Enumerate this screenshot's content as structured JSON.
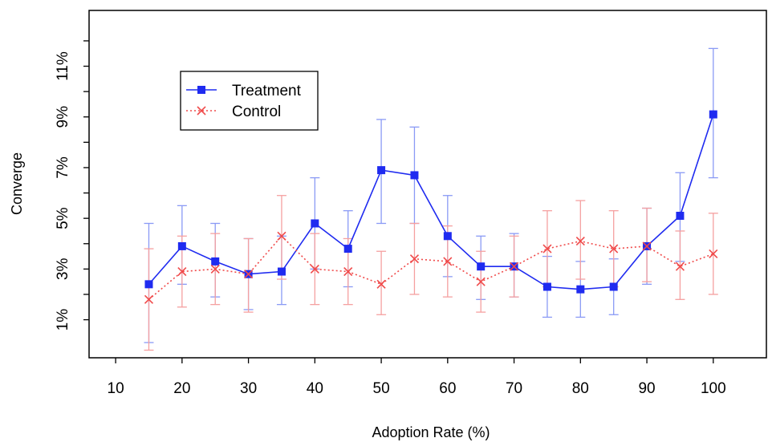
{
  "chart_data": {
    "type": "line",
    "xlabel": "Adoption Rate (%)",
    "ylabel": "Converge",
    "xlim": [
      6,
      108
    ],
    "ylim": [
      -0.5,
      13.2
    ],
    "x_ticks": [
      10,
      20,
      30,
      40,
      50,
      60,
      70,
      80,
      90,
      100
    ],
    "x_tick_labels": [
      "10",
      "20",
      "30",
      "40",
      "50",
      "60",
      "70",
      "80",
      "90",
      "100"
    ],
    "y_ticks": [
      1,
      3,
      5,
      7,
      9,
      11
    ],
    "y_tick_labels": [
      "1%",
      "3%",
      "5%",
      "7%",
      "9%",
      "11%"
    ],
    "y_minor_ticks": [
      2,
      4,
      6,
      8,
      10,
      12
    ],
    "legend": {
      "placement": "top-left",
      "entries": [
        "Treatment",
        "Control"
      ]
    },
    "x": [
      15,
      20,
      25,
      30,
      35,
      40,
      45,
      50,
      55,
      60,
      65,
      70,
      75,
      80,
      85,
      90,
      95,
      100
    ],
    "series": [
      {
        "name": "Treatment",
        "color": "#1f2bf0",
        "error_color": "#8a9af5",
        "marker": "square",
        "line_style": "solid",
        "values": [
          2.4,
          3.9,
          3.3,
          2.8,
          2.9,
          4.8,
          3.8,
          6.9,
          6.7,
          4.3,
          3.1,
          3.1,
          2.3,
          2.2,
          2.3,
          3.9,
          5.1,
          9.1
        ],
        "lower": [
          0.1,
          2.4,
          1.9,
          1.4,
          1.6,
          3.0,
          2.3,
          4.8,
          4.8,
          2.7,
          1.8,
          1.9,
          1.1,
          1.1,
          1.2,
          2.4,
          3.3,
          6.6
        ],
        "upper": [
          4.8,
          5.5,
          4.8,
          4.2,
          4.3,
          6.6,
          5.3,
          8.9,
          8.6,
          5.9,
          4.3,
          4.4,
          3.5,
          3.3,
          3.4,
          5.4,
          6.8,
          11.7
        ]
      },
      {
        "name": "Control",
        "color": "#f04a4a",
        "error_color": "#f5a0a0",
        "marker": "cross",
        "line_style": "dotted",
        "values": [
          1.8,
          2.9,
          3.0,
          2.8,
          4.3,
          3.0,
          2.9,
          2.4,
          3.4,
          3.3,
          2.5,
          3.1,
          3.8,
          4.1,
          3.8,
          3.9,
          3.1,
          3.6
        ],
        "lower": [
          -0.2,
          1.5,
          1.6,
          1.3,
          2.6,
          1.6,
          1.6,
          1.2,
          2.0,
          1.9,
          1.3,
          1.9,
          2.3,
          2.6,
          2.3,
          2.5,
          1.8,
          2.0
        ],
        "upper": [
          3.8,
          4.3,
          4.4,
          4.2,
          5.9,
          4.4,
          4.2,
          3.7,
          4.8,
          4.7,
          3.7,
          4.3,
          5.3,
          5.7,
          5.3,
          5.4,
          4.5,
          5.2
        ]
      }
    ]
  }
}
